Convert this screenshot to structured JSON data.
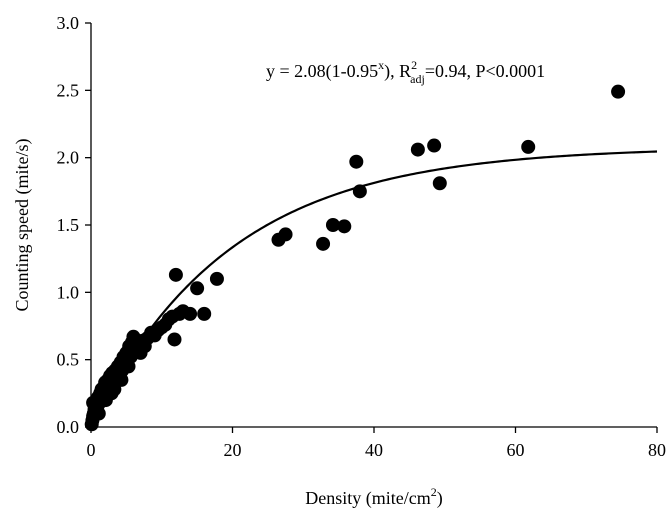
{
  "chart_data": {
    "type": "scatter",
    "title": "",
    "xlabel": {
      "text": "Density (mite/cm",
      "sup": "2",
      "close": ")"
    },
    "ylabel": "Counting speed (mite/s)",
    "xlim": [
      0,
      80
    ],
    "ylim": [
      0,
      3.0
    ],
    "x_ticks": [
      0,
      20,
      40,
      60,
      80
    ],
    "x_tick_labels": [
      "0",
      "20",
      "40",
      "60",
      "80"
    ],
    "y_ticks": [
      0,
      0.5,
      1.0,
      1.5,
      2.0,
      2.5,
      3.0
    ],
    "y_tick_labels": [
      "0.0",
      "0.5",
      "1.0",
      "1.5",
      "2.0",
      "2.5",
      "3.0"
    ],
    "grid": false,
    "annotation": {
      "part1": "y = 2.08(1-0.95",
      "sup_x": "x",
      "part2": "), R",
      "sup_2": "2",
      "sub_adj": "adj",
      "part3": "=0.94, P<0.0001"
    },
    "fit": {
      "a": 2.08,
      "b": 0.95,
      "x_range": [
        0,
        80
      ]
    },
    "series": [
      {
        "marker_color": "#000000",
        "points": [
          [
            0.1,
            0.02
          ],
          [
            0.2,
            0.05
          ],
          [
            0.3,
            0.08
          ],
          [
            0.4,
            0.1
          ],
          [
            0.5,
            0.13
          ],
          [
            0.6,
            0.17
          ],
          [
            0.7,
            0.12
          ],
          [
            0.8,
            0.2
          ],
          [
            0.9,
            0.15
          ],
          [
            1.0,
            0.22
          ],
          [
            1.2,
            0.18
          ],
          [
            1.3,
            0.25
          ],
          [
            1.5,
            0.28
          ],
          [
            1.7,
            0.22
          ],
          [
            1.9,
            0.3
          ],
          [
            2.0,
            0.33
          ],
          [
            2.2,
            0.27
          ],
          [
            2.4,
            0.35
          ],
          [
            2.5,
            0.3
          ],
          [
            2.7,
            0.38
          ],
          [
            2.9,
            0.25
          ],
          [
            3.0,
            0.4
          ],
          [
            3.2,
            0.33
          ],
          [
            3.4,
            0.42
          ],
          [
            3.6,
            0.36
          ],
          [
            3.8,
            0.45
          ],
          [
            4.0,
            0.38
          ],
          [
            4.2,
            0.48
          ],
          [
            4.4,
            0.42
          ],
          [
            4.6,
            0.52
          ],
          [
            4.8,
            0.45
          ],
          [
            5.0,
            0.55
          ],
          [
            5.2,
            0.5
          ],
          [
            5.4,
            0.6
          ],
          [
            5.6,
            0.52
          ],
          [
            5.8,
            0.63
          ],
          [
            6.0,
            0.67
          ],
          [
            6.2,
            0.58
          ],
          [
            6.5,
            0.62
          ],
          [
            7.0,
            0.55
          ],
          [
            7.3,
            0.64
          ],
          [
            7.6,
            0.6
          ],
          [
            8.0,
            0.66
          ],
          [
            8.5,
            0.7
          ],
          [
            9.0,
            0.68
          ],
          [
            9.5,
            0.72
          ],
          [
            10.0,
            0.74
          ],
          [
            10.5,
            0.76
          ],
          [
            11.0,
            0.8
          ],
          [
            11.5,
            0.82
          ],
          [
            11.8,
            0.65
          ],
          [
            12.0,
            1.13
          ],
          [
            12.5,
            0.84
          ],
          [
            13.0,
            0.86
          ],
          [
            14.0,
            0.84
          ],
          [
            15.0,
            1.03
          ],
          [
            16.0,
            0.84
          ],
          [
            17.8,
            1.1
          ],
          [
            26.5,
            1.39
          ],
          [
            27.5,
            1.43
          ],
          [
            32.8,
            1.36
          ],
          [
            34.2,
            1.5
          ],
          [
            35.8,
            1.49
          ],
          [
            37.5,
            1.97
          ],
          [
            38.0,
            1.75
          ],
          [
            46.2,
            2.06
          ],
          [
            48.5,
            2.09
          ],
          [
            49.3,
            1.81
          ],
          [
            61.8,
            2.08
          ],
          [
            74.5,
            2.49
          ],
          [
            0.3,
            0.18
          ],
          [
            1.1,
            0.1
          ],
          [
            2.1,
            0.2
          ],
          [
            3.3,
            0.28
          ],
          [
            4.3,
            0.35
          ],
          [
            5.3,
            0.45
          ]
        ]
      }
    ]
  }
}
